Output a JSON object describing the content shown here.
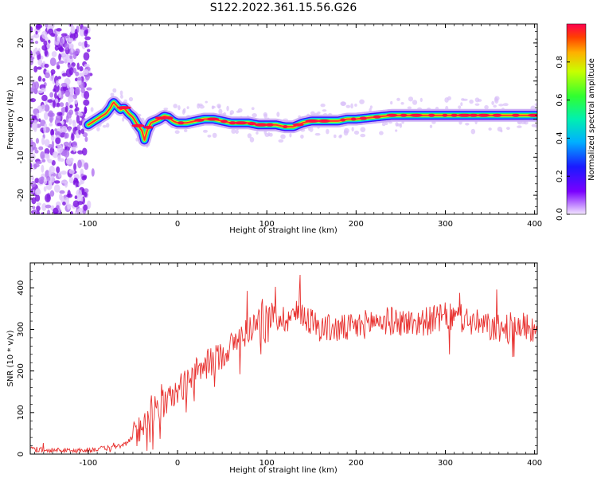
{
  "figure": {
    "title": "S122.2022.361.15.56.G26"
  },
  "chart_data": [
    {
      "type": "heatmap",
      "xlabel": "Height of straight line (km)",
      "ylabel": "Frequency (Hz)",
      "xlim": [
        -165,
        403
      ],
      "ylim": [
        -25,
        25
      ],
      "xticks": [
        -100,
        0,
        100,
        200,
        300,
        400
      ],
      "yticks": [
        -20,
        -10,
        0,
        10,
        20
      ],
      "ridge": {
        "x": [
          -100,
          -90,
          -80,
          -75,
          -72,
          -68,
          -64,
          -60,
          -55,
          -50,
          -45,
          -40,
          -37,
          -34,
          -30,
          -25,
          -20,
          -15,
          -10,
          -5,
          0,
          10,
          20,
          30,
          40,
          50,
          60,
          70,
          80,
          90,
          100,
          110,
          120,
          130,
          140,
          150,
          160,
          170,
          180,
          190,
          200,
          220,
          240,
          260,
          280,
          300,
          320,
          340,
          360,
          380,
          403
        ],
        "y": [
          -1.5,
          0.0,
          1.5,
          3.0,
          4.5,
          3.5,
          2.5,
          3.0,
          1.5,
          0.5,
          -1.5,
          -3.0,
          -5.5,
          -3.0,
          -1.0,
          -0.5,
          0.0,
          0.8,
          0.5,
          -0.5,
          -1.0,
          -1.0,
          -0.5,
          0.0,
          0.0,
          -0.5,
          -1.0,
          -1.0,
          -1.0,
          -1.5,
          -1.5,
          -1.5,
          -2.0,
          -2.0,
          -1.0,
          -0.5,
          -0.5,
          -0.5,
          -0.5,
          0.0,
          0.0,
          0.5,
          1.0,
          1.0,
          1.0,
          1.0,
          1.0,
          1.0,
          1.0,
          1.0,
          1.0
        ]
      },
      "colorbar": {
        "label": "Normalized spectral amplitude",
        "ticks": [
          "0.0",
          "0.2",
          "0.4",
          "0.6",
          "0.8"
        ],
        "range": [
          0,
          1
        ]
      }
    },
    {
      "type": "line",
      "xlabel": "Height of straight line (km)",
      "ylabel": "SNR (10 * v/v)",
      "xlim": [
        -165,
        403
      ],
      "ylim": [
        0,
        460
      ],
      "xticks": [
        -100,
        0,
        100,
        200,
        300,
        400
      ],
      "yticks": [
        0,
        100,
        200,
        300,
        400
      ],
      "color": "#e8312f",
      "trend": {
        "x": [
          -165,
          -140,
          -120,
          -100,
          -80,
          -60,
          -50,
          -40,
          -30,
          -20,
          -10,
          0,
          10,
          20,
          30,
          40,
          50,
          60,
          70,
          80,
          90,
          100,
          110,
          120,
          130,
          140,
          150,
          160,
          180,
          200,
          220,
          240,
          260,
          280,
          300,
          320,
          340,
          360,
          380,
          403
        ],
        "y": [
          12,
          10,
          8,
          10,
          14,
          22,
          40,
          70,
          100,
          115,
          130,
          150,
          175,
          195,
          210,
          225,
          240,
          260,
          280,
          300,
          320,
          335,
          330,
          325,
          335,
          340,
          320,
          305,
          300,
          305,
          320,
          320,
          315,
          320,
          330,
          325,
          310,
          300,
          310,
          300
        ]
      },
      "noise_amplitude": 35,
      "samples": 700
    }
  ]
}
